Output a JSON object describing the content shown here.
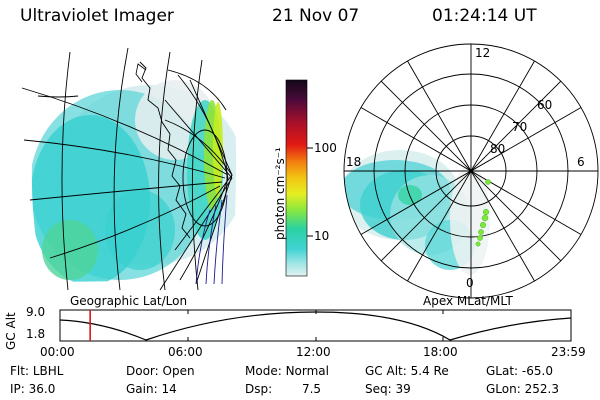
{
  "header": {
    "instrument": "Ultraviolet Imager",
    "date": "21 Nov 07",
    "time": "01:24:14 UT"
  },
  "colorbar": {
    "unit_label": "photon cm⁻²s⁻¹",
    "ticks": [
      "100",
      "10"
    ],
    "colors": [
      "#1a0d24",
      "#5a1040",
      "#b0102a",
      "#e01818",
      "#f07a10",
      "#f2c010",
      "#e8ee20",
      "#8ee83a",
      "#26d6a0",
      "#3ed3d3",
      "#9be6e6",
      "#d8eeee"
    ]
  },
  "geo_panel": {
    "caption": "Geographic Lat/Lon"
  },
  "polar_panel": {
    "caption": "Apex MLat/MLT",
    "mlt_labels": {
      "top": "12",
      "bottom": "0",
      "left": "18",
      "right": "6"
    },
    "lat_labels": [
      "60",
      "70",
      "80"
    ]
  },
  "altitude_plot": {
    "axis_title": "GC Alt",
    "y_ticks": [
      "9.0",
      "1.8"
    ],
    "x_ticks": [
      "00:00",
      "06:00",
      "12:00",
      "18:00",
      "23:59"
    ],
    "current_time_fraction": 0.059
  },
  "status": {
    "flt_label": "Flt:",
    "flt_value": "LBHL",
    "ip_label": "IP:",
    "ip_value": "36.0",
    "door_label": "Door:",
    "door_value": "Open",
    "gain_label": "Gain:",
    "gain_value": "14",
    "mode_label": "Mode:",
    "mode_value": "Normal",
    "dsp_label": "Dsp:",
    "dsp_value": "7.5",
    "gcalt_label": "GC Alt:",
    "gcalt_value": "5.4 Re",
    "seq_label": "Seq:",
    "seq_value": "39",
    "glat_label": "GLat:",
    "glat_value": "-65.0",
    "glon_label": "GLon:",
    "glon_value": "252.3"
  }
}
